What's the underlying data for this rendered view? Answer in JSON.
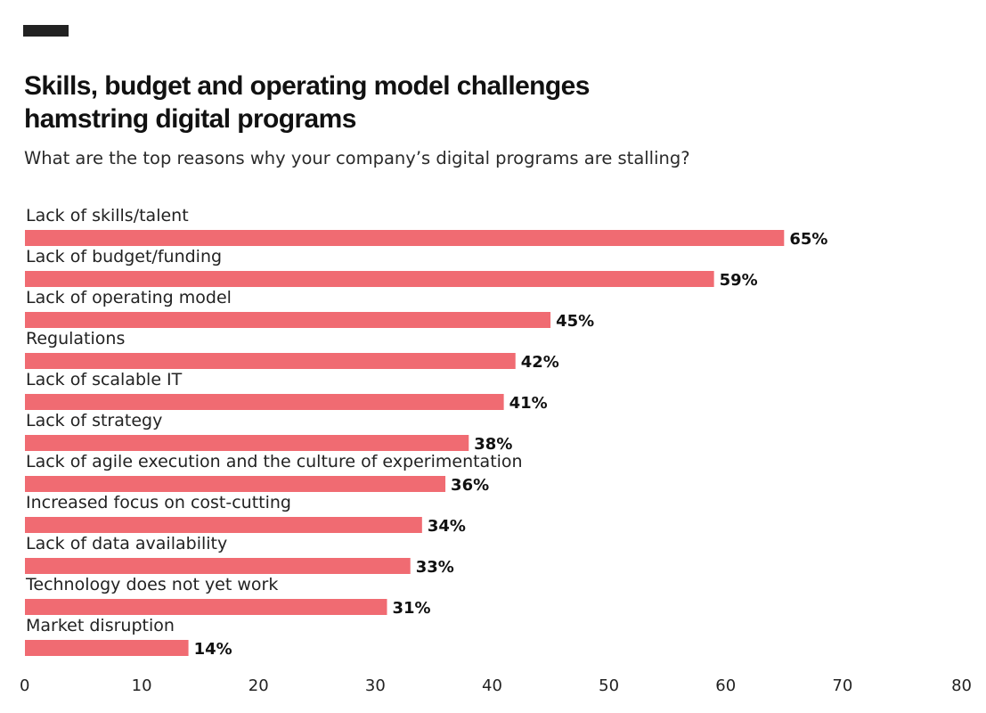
{
  "header": {
    "title_line1": "Skills, budget and operating model challenges",
    "title_line2": "hamstring digital programs",
    "subtitle": "What are the top reasons why your company’s digital programs are stalling?"
  },
  "colors": {
    "bar": "#f06b72",
    "text": "#222222",
    "logo": "#222222"
  },
  "chart_data": {
    "type": "bar",
    "orientation": "horizontal",
    "title": "Skills, budget and operating model challenges hamstring digital programs",
    "subtitle": "What are the top reasons why your company’s digital programs are stalling?",
    "categories": [
      "Lack of skills/talent",
      "Lack of budget/funding",
      "Lack of operating model",
      "Regulations",
      "Lack of scalable IT",
      "Lack of strategy",
      "Lack of agile execution and the culture of experimentation",
      "Increased focus on cost-cutting",
      "Lack of data availability",
      "Technology does not yet work",
      "Market disruption"
    ],
    "values": [
      65,
      59,
      45,
      42,
      41,
      38,
      36,
      34,
      33,
      31,
      14
    ],
    "value_labels": [
      "65%",
      "59%",
      "45%",
      "42%",
      "41%",
      "38%",
      "36%",
      "34%",
      "33%",
      "31%",
      "14%"
    ],
    "xlim": [
      0,
      80
    ],
    "xticks": [
      0,
      10,
      20,
      30,
      40,
      50,
      60,
      70,
      80
    ],
    "grid": false,
    "xlabel": "",
    "ylabel": ""
  }
}
